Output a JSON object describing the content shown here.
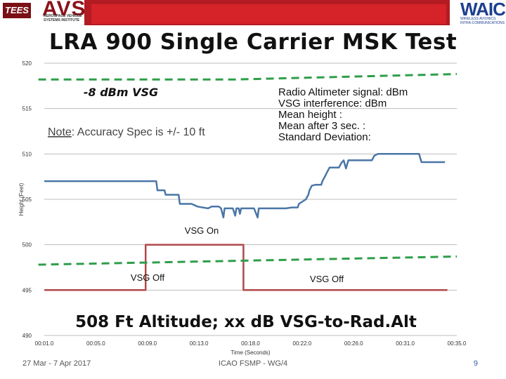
{
  "header": {
    "tees_logo": "TEES",
    "avsi_logo": "AVSI",
    "avsi_subtitle": "AEROSPACE VEHICLE SYSTEMS INSTITUTE",
    "waic_logo": "WAIC",
    "waic_subtitle": "WIRELESS AVIONICS INTRA-COMMUNICATIONS",
    "colors": {
      "band": "#b31b22",
      "logo_red": "#8a1219",
      "waic_blue": "#1d3f8f"
    }
  },
  "slide_title": "LRA 900 Single Carrier MSK Test",
  "chart_data": {
    "type": "line",
    "title": "",
    "xlabel": "Time (Seconds)",
    "ylabel": "Height (Feet)",
    "ylim": [
      490,
      520
    ],
    "xlim": [
      0,
      35
    ],
    "y_ticks": [
      490,
      495,
      500,
      505,
      510,
      515,
      520
    ],
    "x_ticks": [
      "00:01.0",
      "00:05.0",
      "00:09.0",
      "00:13.0",
      "00:18.0",
      "00:22.0",
      "00:26.0",
      "00:31.0",
      "00:35.0"
    ],
    "grid": "horizontal",
    "series": [
      {
        "color": "#4a76a8",
        "points": [
          [
            0,
            507
          ],
          [
            9.5,
            507
          ],
          [
            9.6,
            506
          ],
          [
            10.2,
            506
          ],
          [
            10.3,
            505.5
          ],
          [
            11.4,
            505.5
          ],
          [
            11.5,
            504.5
          ],
          [
            12.5,
            504.5
          ],
          [
            13.0,
            504.2
          ],
          [
            13.9,
            504.0
          ],
          [
            14.2,
            504.2
          ],
          [
            14.8,
            504.2
          ],
          [
            15.0,
            504.0
          ],
          [
            15.2,
            503.0
          ],
          [
            15.3,
            504.0
          ],
          [
            16.0,
            504.0
          ],
          [
            16.2,
            503.2
          ],
          [
            16.3,
            504.0
          ],
          [
            16.5,
            504.0
          ],
          [
            16.6,
            503.4
          ],
          [
            16.7,
            504.0
          ],
          [
            17.8,
            504.0
          ],
          [
            18.1,
            503.0
          ],
          [
            18.2,
            504.0
          ],
          [
            20.5,
            504.0
          ],
          [
            21.0,
            504.1
          ],
          [
            21.5,
            504.1
          ],
          [
            21.6,
            504.5
          ],
          [
            22.2,
            505.0
          ],
          [
            22.4,
            505.5
          ],
          [
            22.5,
            506.0
          ],
          [
            22.7,
            506.5
          ],
          [
            23.0,
            506.6
          ],
          [
            23.5,
            506.6
          ],
          [
            23.6,
            507.0
          ],
          [
            23.8,
            507.5
          ],
          [
            24.0,
            508.0
          ],
          [
            24.2,
            508.5
          ],
          [
            25.0,
            508.5
          ],
          [
            25.2,
            509.0
          ],
          [
            25.4,
            509.3
          ],
          [
            25.6,
            508.4
          ],
          [
            25.8,
            509.3
          ],
          [
            27.5,
            509.3
          ],
          [
            27.8,
            509.3
          ],
          [
            28.0,
            509.8
          ],
          [
            28.3,
            510.0
          ],
          [
            29.0,
            510.0
          ],
          [
            31.8,
            510.0
          ],
          [
            32.0,
            509.1
          ],
          [
            34.0,
            509.1
          ]
        ]
      },
      {
        "color": "#b04a4a",
        "points": [
          [
            0,
            495
          ],
          [
            8.6,
            495
          ],
          [
            8.6,
            500
          ],
          [
            16.9,
            500
          ],
          [
            16.9,
            495
          ],
          [
            34.2,
            495
          ]
        ]
      },
      {
        "color": "#2e9e4a",
        "dashed": true,
        "points": [
          [
            -0.5,
            518.2
          ],
          [
            16,
            518.2
          ],
          [
            35,
            518.8
          ]
        ]
      },
      {
        "color": "#2e9e4a",
        "dashed": true,
        "points": [
          [
            -0.5,
            497.8
          ],
          [
            35,
            498.7
          ]
        ]
      }
    ],
    "annotations": {
      "vsg_label": "-8 dBm VSG",
      "note_prefix": "Note",
      "note_text": ": Accuracy Spec is +/- 10 ft",
      "legend_lines": [
        "Radio Altimeter signal:   dBm",
        "VSG interference: dBm",
        "Mean height :",
        "Mean after 3 sec. :",
        "Standard Deviation:"
      ],
      "vsg_on": "VSG On",
      "vsg_off_left": "VSG Off",
      "vsg_off_right": "VSG Off",
      "bottom_title": "508 Ft Altitude; xx dB VSG-to-Rad.Alt"
    }
  },
  "footer": {
    "date": "27 Mar - 7 Apr 2017",
    "center": "ICAO FSMP - WG/4",
    "page": "9"
  }
}
